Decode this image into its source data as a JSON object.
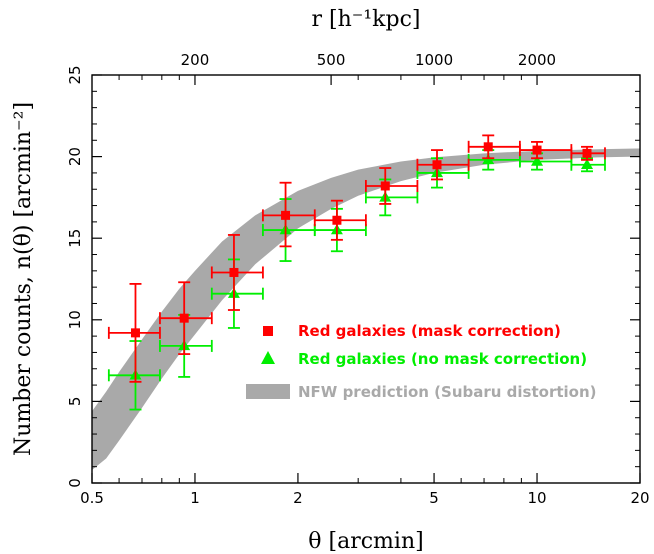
{
  "chart_data": {
    "type": "scatter",
    "xscale": "log",
    "xlim": [
      0.5,
      20
    ],
    "ylim": [
      0,
      25
    ],
    "xticks": [
      0.5,
      1,
      2,
      5,
      10,
      20
    ],
    "xtick_labels": [
      "0.5",
      "1",
      "2",
      "5",
      "10",
      "20"
    ],
    "yticks": [
      0,
      5,
      10,
      15,
      20,
      25
    ],
    "ytick_labels": [
      "0",
      "5",
      "10",
      "15",
      "20",
      "25"
    ],
    "top_axis": {
      "label": "r [h⁻¹kpc]",
      "ticks": [
        {
          "label": "200",
          "theta": 1.0
        },
        {
          "label": "500",
          "theta": 2.5
        },
        {
          "label": "1000",
          "theta": 5.0
        },
        {
          "label": "2000",
          "theta": 10.0
        }
      ]
    },
    "xlabel": "θ [arcmin]",
    "ylabel": "Number counts, n(θ) [arcmin⁻²]",
    "legend_placement": "lower-right",
    "series": [
      {
        "name": "Red galaxies (mask correction)",
        "marker": "square",
        "color": "#ff0000",
        "points": [
          {
            "x": 0.67,
            "y": 9.2,
            "xlo": 0.56,
            "xhi": 0.79,
            "ylo": 6.2,
            "yhi": 12.2
          },
          {
            "x": 0.93,
            "y": 10.1,
            "xlo": 0.79,
            "xhi": 1.12,
            "ylo": 7.9,
            "yhi": 12.3
          },
          {
            "x": 1.3,
            "y": 12.9,
            "xlo": 1.12,
            "xhi": 1.58,
            "ylo": 10.6,
            "yhi": 15.2
          },
          {
            "x": 1.84,
            "y": 16.4,
            "xlo": 1.58,
            "xhi": 2.24,
            "ylo": 14.5,
            "yhi": 18.4
          },
          {
            "x": 2.6,
            "y": 16.1,
            "xlo": 2.24,
            "xhi": 3.16,
            "ylo": 14.9,
            "yhi": 17.3
          },
          {
            "x": 3.6,
            "y": 18.2,
            "xlo": 3.16,
            "xhi": 4.47,
            "ylo": 17.1,
            "yhi": 19.3
          },
          {
            "x": 5.1,
            "y": 19.5,
            "xlo": 4.47,
            "xhi": 6.31,
            "ylo": 18.6,
            "yhi": 20.4
          },
          {
            "x": 7.2,
            "y": 20.6,
            "xlo": 6.31,
            "xhi": 8.91,
            "ylo": 19.9,
            "yhi": 21.3
          },
          {
            "x": 10.0,
            "y": 20.4,
            "xlo": 8.91,
            "xhi": 12.6,
            "ylo": 19.9,
            "yhi": 20.9
          },
          {
            "x": 14.0,
            "y": 20.2,
            "xlo": 12.6,
            "xhi": 15.8,
            "ylo": 19.8,
            "yhi": 20.6
          }
        ]
      },
      {
        "name": "Red galaxies (no mask correction)",
        "marker": "triangle",
        "color": "#00ee00",
        "points": [
          {
            "x": 0.67,
            "y": 6.6,
            "xlo": 0.56,
            "xhi": 0.79,
            "ylo": 4.5,
            "yhi": 8.7
          },
          {
            "x": 0.93,
            "y": 8.4,
            "xlo": 0.79,
            "xhi": 1.12,
            "ylo": 6.5,
            "yhi": 10.3
          },
          {
            "x": 1.3,
            "y": 11.6,
            "xlo": 1.12,
            "xhi": 1.58,
            "ylo": 9.5,
            "yhi": 13.7
          },
          {
            "x": 1.84,
            "y": 15.5,
            "xlo": 1.58,
            "xhi": 2.24,
            "ylo": 13.6,
            "yhi": 17.4
          },
          {
            "x": 2.6,
            "y": 15.5,
            "xlo": 2.24,
            "xhi": 3.16,
            "ylo": 14.2,
            "yhi": 16.8
          },
          {
            "x": 3.6,
            "y": 17.5,
            "xlo": 3.16,
            "xhi": 4.47,
            "ylo": 16.4,
            "yhi": 18.6
          },
          {
            "x": 5.1,
            "y": 19.0,
            "xlo": 4.47,
            "xhi": 6.31,
            "ylo": 18.1,
            "yhi": 19.9
          },
          {
            "x": 7.2,
            "y": 19.8,
            "xlo": 6.31,
            "xhi": 8.91,
            "ylo": 19.2,
            "yhi": 20.4
          },
          {
            "x": 10.0,
            "y": 19.7,
            "xlo": 8.91,
            "xhi": 12.6,
            "ylo": 19.2,
            "yhi": 20.2
          },
          {
            "x": 14.0,
            "y": 19.5,
            "xlo": 12.6,
            "xhi": 15.8,
            "ylo": 19.1,
            "yhi": 19.9
          }
        ]
      }
    ],
    "band": {
      "name": "NFW prediction (Subaru distortion)",
      "color": "#a9a9a9",
      "x": [
        0.5,
        0.55,
        0.6,
        0.7,
        0.8,
        0.9,
        1.0,
        1.2,
        1.5,
        2.0,
        2.5,
        3.0,
        4.0,
        5.0,
        7.0,
        10.0,
        15.0,
        20.0
      ],
      "lower": [
        0.8,
        1.5,
        2.6,
        4.6,
        6.4,
        7.9,
        9.1,
        11.2,
        13.4,
        15.6,
        16.8,
        17.6,
        18.5,
        19.0,
        19.5,
        19.8,
        19.95,
        20.0
      ],
      "upper": [
        4.4,
        5.6,
        6.8,
        8.8,
        10.5,
        11.9,
        13.0,
        14.8,
        16.4,
        17.9,
        18.7,
        19.2,
        19.7,
        19.95,
        20.2,
        20.35,
        20.45,
        20.5
      ]
    }
  }
}
